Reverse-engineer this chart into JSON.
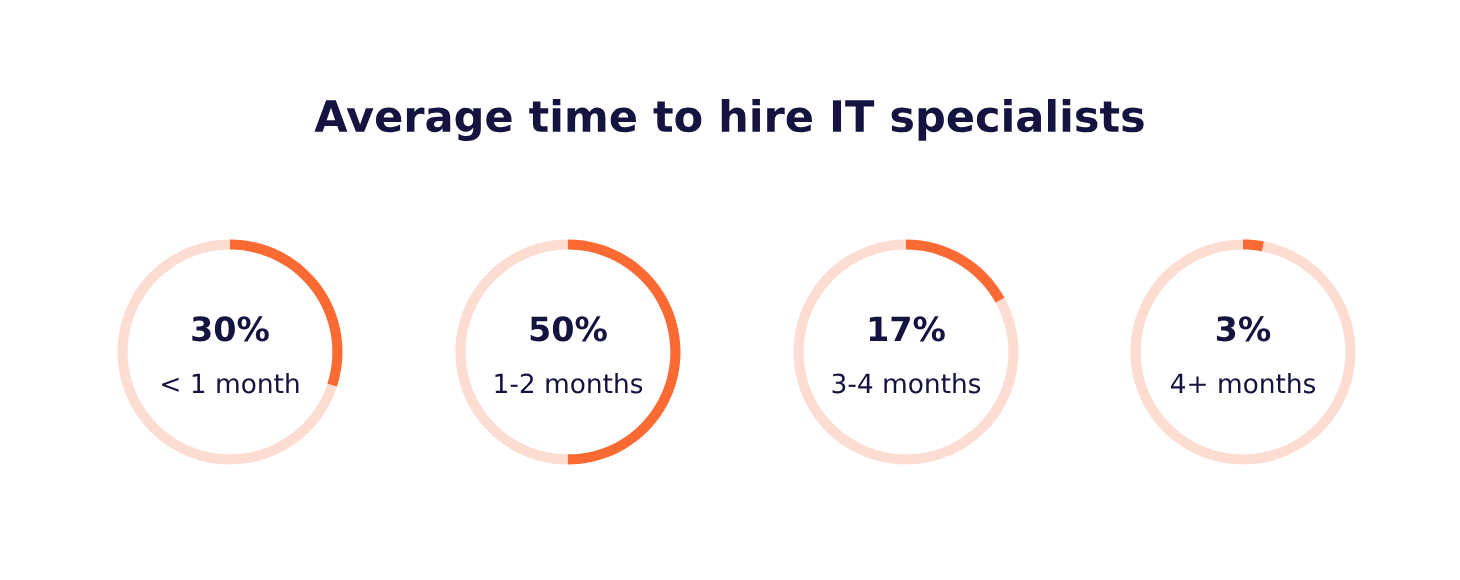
{
  "chart_data": [
    {
      "type": "donut",
      "title": "Average time to hire IT specialists",
      "categories": [
        null,
        null
      ],
      "values": [
        30,
        70
      ],
      "colors": [
        "#fb6a32",
        "#fddcd1"
      ],
      "value_labels": [
        "30%",
        null
      ],
      "annotations": [
        "< 1 month"
      ]
    },
    {
      "type": "donut",
      "categories": [
        null,
        null
      ],
      "values": [
        50,
        50
      ],
      "colors": [
        "#fb6a32",
        "#fddcd1"
      ],
      "value_labels": [
        "50%",
        null
      ],
      "annotations": [
        "1-2 months"
      ]
    },
    {
      "type": "donut",
      "categories": [
        null,
        null
      ],
      "values": [
        17,
        83
      ],
      "colors": [
        "#fb6a32",
        "#fddcd1"
      ],
      "value_labels": [
        "17%",
        null
      ],
      "annotations": [
        "3-4 months"
      ]
    },
    {
      "type": "donut",
      "categories": [
        null,
        null
      ],
      "values": [
        3,
        97
      ],
      "colors": [
        "#fb6a32",
        "#fddcd1"
      ],
      "value_labels": [
        "3%",
        null
      ],
      "annotations": [
        "4+ months"
      ]
    }
  ]
}
